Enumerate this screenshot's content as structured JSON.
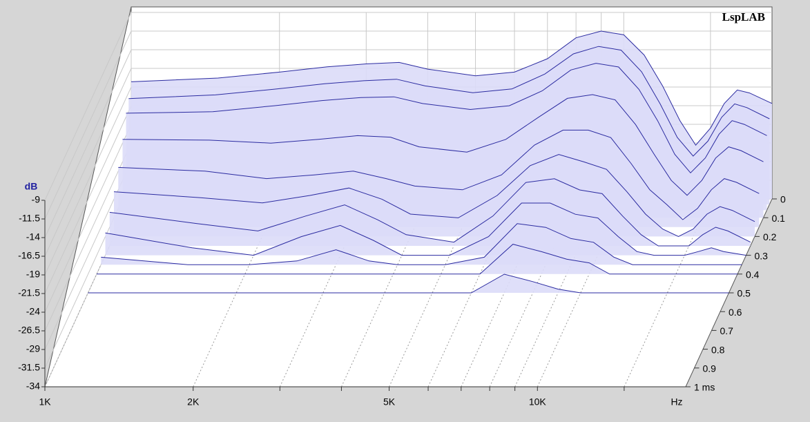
{
  "chart_data": {
    "type": "waterfall",
    "watermark": "LspLAB",
    "ylabel": "dB",
    "xlabel": "Hz",
    "xscale": "log",
    "xlim": [
      1000,
      20000
    ],
    "xticks": [
      {
        "value": 1000,
        "label": "1K"
      },
      {
        "value": 2000,
        "label": "2K"
      },
      {
        "value": 5000,
        "label": "5K"
      },
      {
        "value": 10000,
        "label": "10K"
      }
    ],
    "xminorticks": [
      3000,
      4000,
      6000,
      7000,
      8000,
      9000,
      15000
    ],
    "ylim": [
      -34,
      -9
    ],
    "yticks": [
      -9,
      -11.5,
      -14,
      -16.5,
      -19,
      -21.5,
      -24,
      -26.5,
      -29,
      -31.5,
      -34
    ],
    "zlim": [
      0,
      1
    ],
    "zticks": [
      0,
      0.1,
      0.2,
      0.3,
      0.4,
      0.5,
      0.6,
      0.7,
      0.8,
      0.9,
      {
        "value": 1,
        "label": "1 ms"
      }
    ],
    "grid": true,
    "color": "#2a2aa0",
    "fill": "#dcdcf8",
    "x": [
      1000,
      1500,
      2000,
      2500,
      3000,
      3500,
      4000,
      5000,
      6000,
      7000,
      8000,
      9000,
      10000,
      11000,
      12000,
      13000,
      14000,
      15000,
      16000,
      17000,
      18000,
      20000
    ],
    "z": [
      0,
      0.03,
      0.06,
      0.1,
      0.15,
      0.2,
      0.25,
      0.3,
      0.35,
      0.4,
      0.5
    ],
    "series": [
      {
        "values": [
          -18.3,
          -17.8,
          -17,
          -16.3,
          -15.9,
          -15.7,
          -16.6,
          -17.5,
          -17,
          -15.2,
          -12.4,
          -11.5,
          -12,
          -14.7,
          -18.9,
          -23.5,
          -26.8,
          -24.5,
          -21.2,
          -19.4,
          -19.8,
          -21.2
        ]
      },
      {
        "values": [
          -19.8,
          -19.3,
          -18.5,
          -17.8,
          -17.4,
          -17.2,
          -18.1,
          -19,
          -18.5,
          -16.5,
          -13.8,
          -12.8,
          -13.3,
          -16.2,
          -20.5,
          -25,
          -27.5,
          -25.5,
          -22.3,
          -20.5,
          -21,
          -22.5
        ]
      },
      {
        "values": [
          -21,
          -20.8,
          -20,
          -19.3,
          -18.9,
          -18.8,
          -19.7,
          -20.5,
          -20,
          -18,
          -15.2,
          -14.3,
          -14.8,
          -17.8,
          -22,
          -26.5,
          -29,
          -27,
          -23.8,
          -22,
          -22.5,
          -24
        ]
      },
      {
        "values": [
          -23.5,
          -23.6,
          -24,
          -23.5,
          -23,
          -23.2,
          -24.5,
          -25.2,
          -23.5,
          -20.5,
          -18,
          -17.5,
          -18.2,
          -21.5,
          -25.5,
          -29,
          -31,
          -29,
          -26,
          -24.5,
          -25,
          -26.5
        ]
      },
      {
        "values": [
          -26,
          -26.5,
          -27.5,
          -27,
          -26.5,
          -27.5,
          -28.5,
          -29,
          -27,
          -23,
          -21,
          -21,
          -22,
          -25.5,
          -29,
          -31,
          -33,
          -31.5,
          -29,
          -27.5,
          -28,
          -29.5
        ]
      },
      {
        "values": [
          -28,
          -28.8,
          -29.5,
          -28.5,
          -27.5,
          -29,
          -31,
          -31.5,
          -28.5,
          -24.5,
          -23,
          -24,
          -25,
          -28,
          -31,
          -33,
          -34,
          -33,
          -31,
          -30,
          -30.5,
          -32
        ]
      },
      {
        "values": [
          -29.5,
          -31,
          -32,
          -30,
          -28.5,
          -30.5,
          -32.5,
          -33.5,
          -30,
          -25.5,
          -25,
          -26.5,
          -27,
          -30,
          -32.5,
          -34,
          -34,
          -34,
          -32.5,
          -31.5,
          -32,
          -33.5
        ]
      },
      {
        "values": [
          -31,
          -33,
          -34,
          -31.5,
          -30,
          -32,
          -34,
          -34,
          -31.5,
          -27,
          -27,
          -28.5,
          -29,
          -31.5,
          -33.5,
          -34,
          -34,
          -34,
          -33.5,
          -33,
          -33.5,
          -34
        ]
      },
      {
        "values": [
          -33,
          -34,
          -34,
          -33.5,
          -32,
          -33.5,
          -34,
          -34,
          -33,
          -28.5,
          -29,
          -30.5,
          -31,
          -33,
          -34,
          -34,
          -34,
          -34,
          -34,
          -34,
          -34,
          -34
        ]
      },
      {
        "values": [
          -34,
          -34,
          -34,
          -34,
          -34,
          -34,
          -34,
          -34,
          -34,
          -30,
          -31,
          -32,
          -32.5,
          -34,
          -34,
          -34,
          -34,
          -34,
          -34,
          -34,
          -34,
          -34
        ]
      },
      {
        "values": [
          -34,
          -34,
          -34,
          -34,
          -34,
          -34,
          -34,
          -34,
          -34,
          -31.5,
          -32.5,
          -33.5,
          -34,
          -34,
          -34,
          -34,
          -34,
          -34,
          -34,
          -34,
          -34,
          -34
        ]
      }
    ]
  }
}
